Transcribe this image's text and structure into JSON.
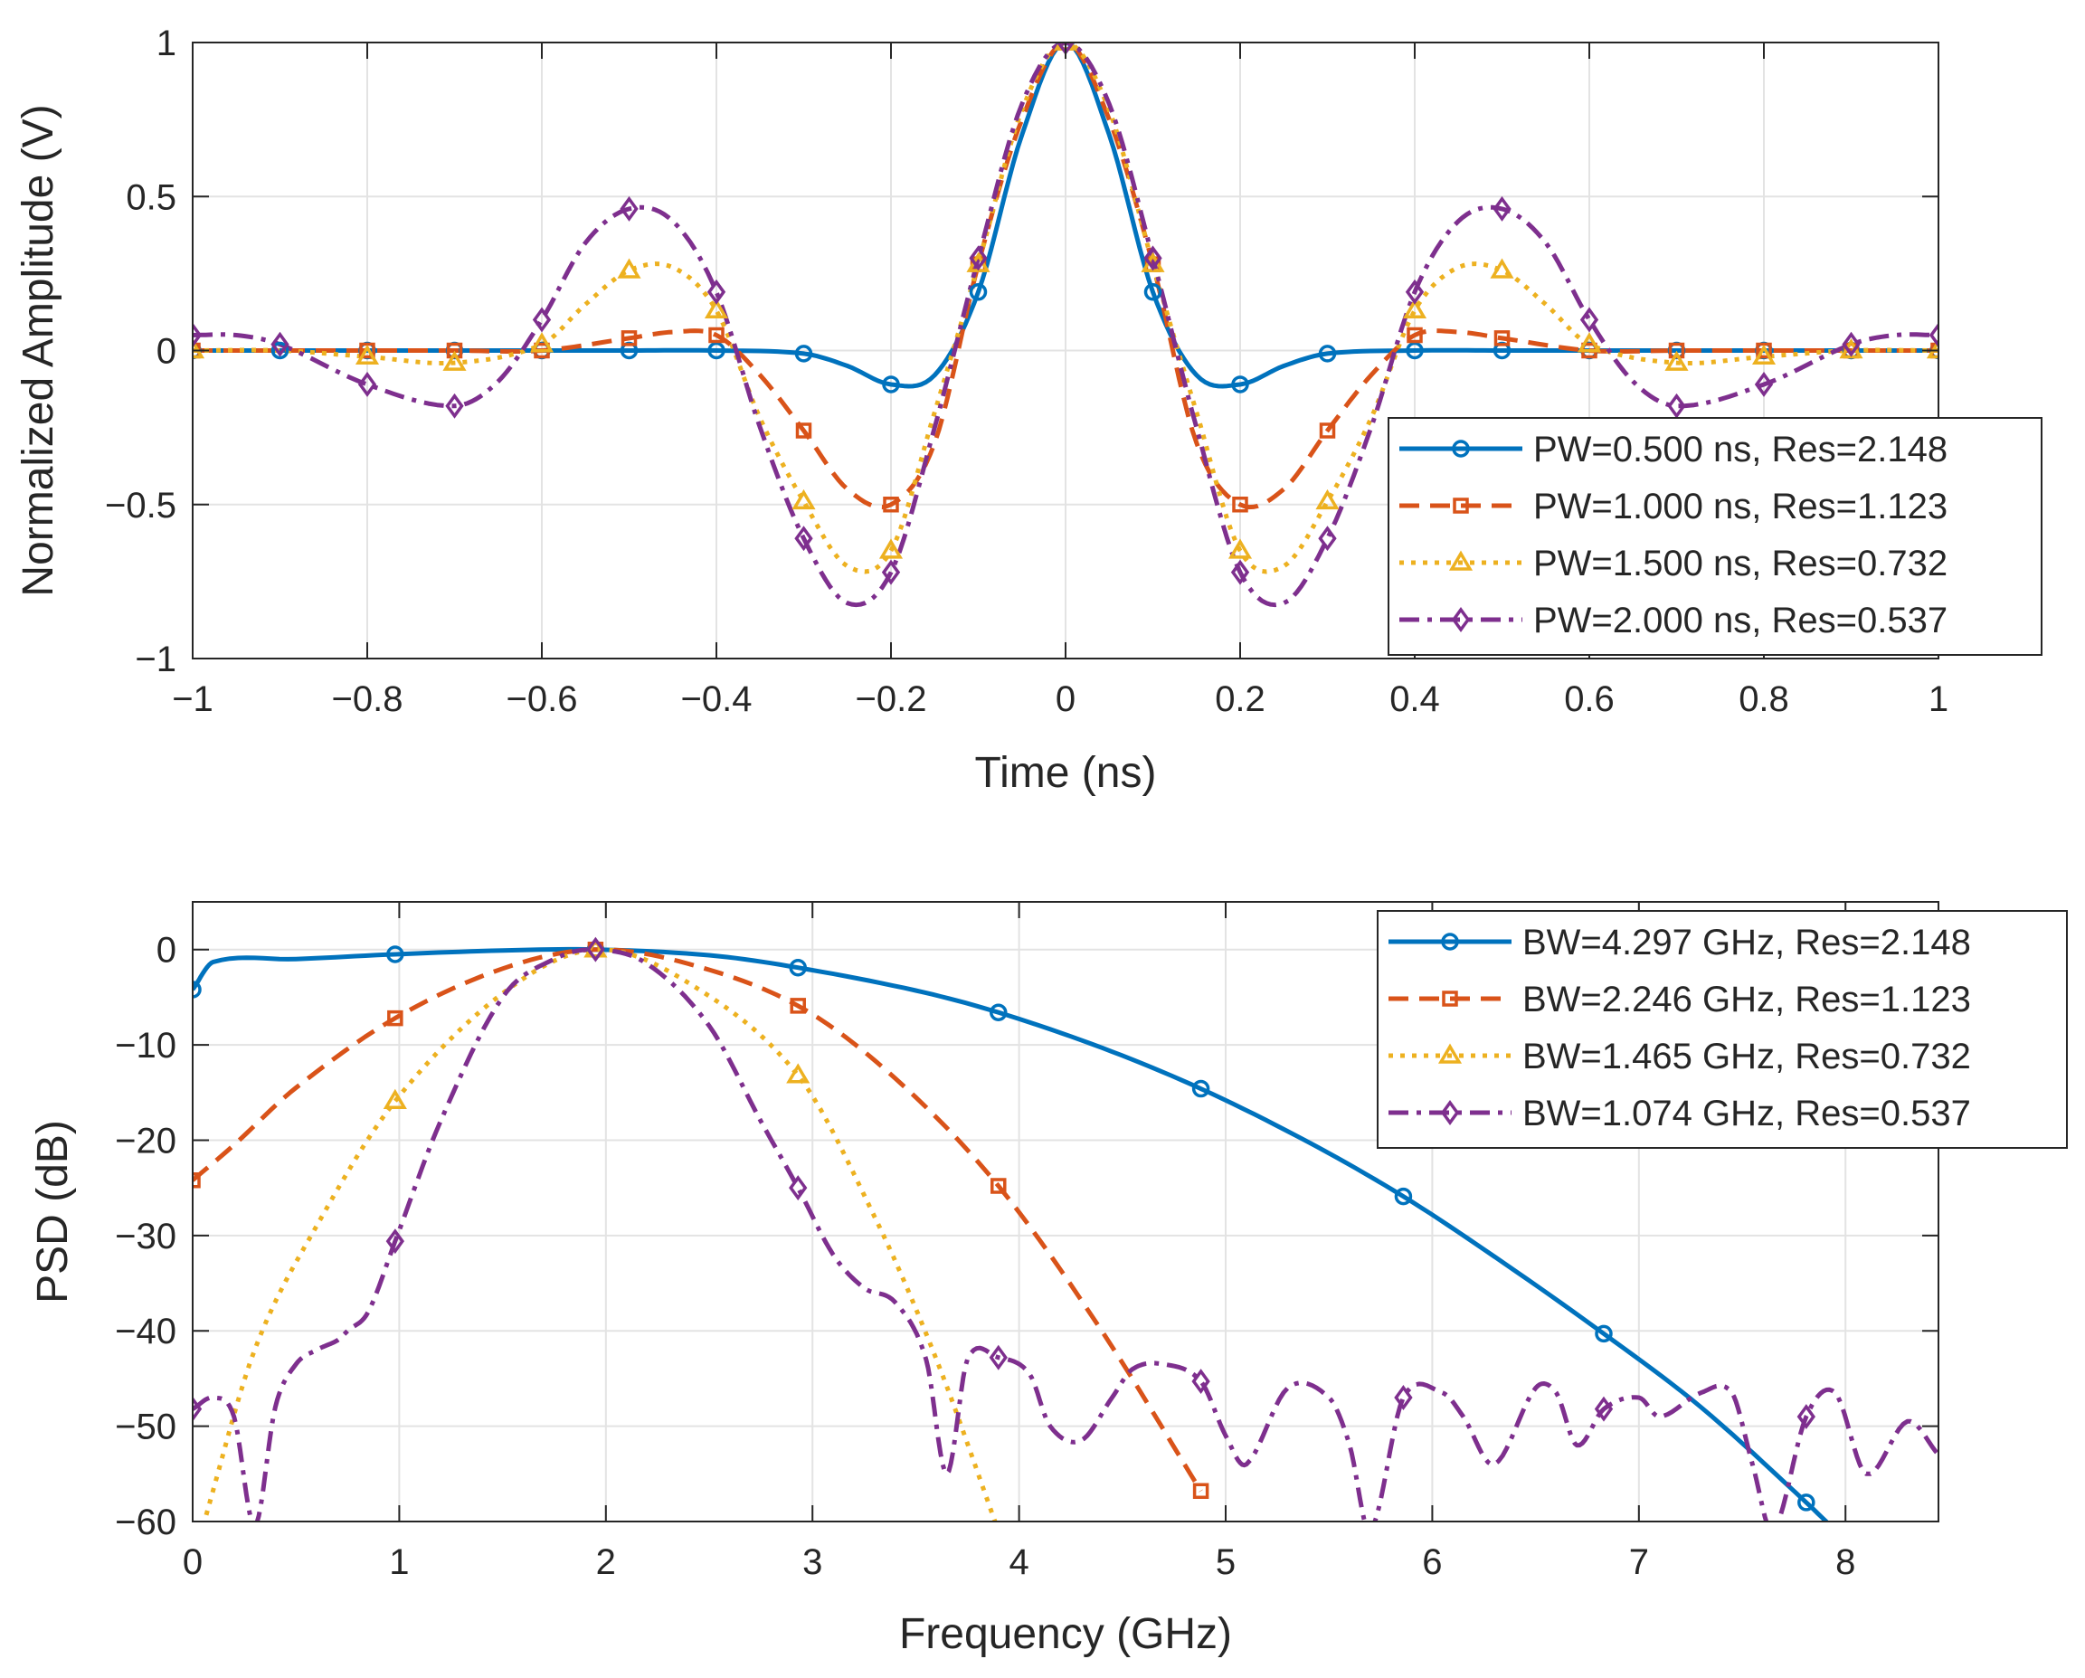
{
  "chart_data": [
    {
      "type": "line",
      "title": "",
      "xlabel": "Time (ns)",
      "ylabel": "Normalized Amplitude (V)",
      "xlim": [
        -1,
        1
      ],
      "ylim": [
        -1,
        1
      ],
      "xticks": [
        -1,
        -0.8,
        -0.6,
        -0.4,
        -0.2,
        0,
        0.2,
        0.4,
        0.6,
        0.8,
        1
      ],
      "xtick_labels": [
        "−1",
        "−0.8",
        "−0.6",
        "−0.4",
        "−0.2",
        "0",
        "0.2",
        "0.4",
        "0.6",
        "0.8",
        "1"
      ],
      "yticks": [
        -1,
        -0.5,
        0,
        0.5,
        1
      ],
      "ytick_labels": [
        "−1",
        "−0.5",
        "0",
        "0.5",
        "1"
      ],
      "grid": true,
      "legend_position": "bottom-right",
      "series": [
        {
          "name": "PW=0.500 ns, Res=2.148",
          "color": "#0072BD",
          "dash": "solid",
          "marker": "circle",
          "x": [
            -1,
            -0.9,
            -0.8,
            -0.7,
            -0.6,
            -0.5,
            -0.4,
            -0.3,
            -0.25,
            -0.2,
            -0.15,
            -0.1,
            -0.05,
            0,
            0.05,
            0.1,
            0.15,
            0.2,
            0.25,
            0.3,
            0.4,
            0.5,
            0.6,
            0.7,
            0.8,
            0.9,
            1
          ],
          "y": [
            0,
            0,
            0,
            0,
            0,
            0,
            0,
            -0.01,
            -0.05,
            -0.11,
            -0.08,
            0.19,
            0.7,
            1,
            0.7,
            0.19,
            -0.08,
            -0.11,
            -0.05,
            -0.01,
            0,
            0,
            0,
            0,
            0,
            0,
            0
          ],
          "marker_x": [
            -1,
            -0.9,
            -0.8,
            -0.7,
            -0.6,
            -0.5,
            -0.4,
            -0.3,
            -0.2,
            -0.1,
            0,
            0.1,
            0.2,
            0.3,
            0.4,
            0.5,
            0.6,
            0.7,
            0.8,
            0.9,
            1
          ]
        },
        {
          "name": "PW=1.000 ns, Res=1.123",
          "color": "#D95319",
          "dash": "dashed",
          "marker": "square",
          "x": [
            -1,
            -0.9,
            -0.8,
            -0.7,
            -0.6,
            -0.5,
            -0.45,
            -0.4,
            -0.35,
            -0.3,
            -0.25,
            -0.2,
            -0.15,
            -0.1,
            -0.05,
            0,
            0.05,
            0.1,
            0.15,
            0.2,
            0.25,
            0.3,
            0.35,
            0.4,
            0.45,
            0.5,
            0.6,
            0.7,
            0.8,
            0.9,
            1
          ],
          "y": [
            0,
            0,
            0,
            0,
            0,
            0.04,
            0.06,
            0.05,
            -0.08,
            -0.26,
            -0.45,
            -0.5,
            -0.3,
            0.28,
            0.75,
            1,
            0.75,
            0.28,
            -0.3,
            -0.5,
            -0.45,
            -0.26,
            -0.08,
            0.05,
            0.06,
            0.04,
            0,
            0,
            0,
            0,
            0
          ],
          "marker_x": [
            -1,
            -0.8,
            -0.7,
            -0.6,
            -0.5,
            -0.4,
            -0.3,
            -0.2,
            -0.1,
            0,
            0.1,
            0.2,
            0.3,
            0.4,
            0.5,
            0.6,
            0.7,
            0.8,
            0.9,
            1
          ]
        },
        {
          "name": "PW=1.500 ns, Res=0.732",
          "color": "#EDB120",
          "dash": "dotted",
          "marker": "triangle",
          "x": [
            -1,
            -0.9,
            -0.8,
            -0.7,
            -0.6,
            -0.55,
            -0.5,
            -0.45,
            -0.4,
            -0.35,
            -0.3,
            -0.25,
            -0.2,
            -0.15,
            -0.1,
            -0.05,
            0,
            0.05,
            0.1,
            0.15,
            0.2,
            0.25,
            0.3,
            0.35,
            0.4,
            0.45,
            0.5,
            0.55,
            0.6,
            0.7,
            0.8,
            0.9,
            1
          ],
          "y": [
            0,
            0,
            -0.02,
            -0.04,
            0.02,
            0.15,
            0.26,
            0.27,
            0.13,
            -0.22,
            -0.49,
            -0.7,
            -0.65,
            -0.2,
            0.28,
            0.78,
            1,
            0.78,
            0.28,
            -0.2,
            -0.65,
            -0.7,
            -0.49,
            -0.22,
            0.13,
            0.27,
            0.26,
            0.15,
            0.02,
            -0.04,
            -0.02,
            0,
            0
          ],
          "marker_x": [
            -1,
            -0.8,
            -0.7,
            -0.6,
            -0.5,
            -0.4,
            -0.3,
            -0.2,
            -0.1,
            0,
            0.1,
            0.2,
            0.3,
            0.4,
            0.5,
            0.6,
            0.7,
            0.8,
            0.9,
            1
          ]
        },
        {
          "name": "PW=2.000 ns, Res=0.537",
          "color": "#7E2F8E",
          "dash": "dashdot",
          "marker": "diamond",
          "x": [
            -1,
            -0.95,
            -0.9,
            -0.8,
            -0.7,
            -0.65,
            -0.6,
            -0.55,
            -0.5,
            -0.45,
            -0.4,
            -0.35,
            -0.3,
            -0.25,
            -0.2,
            -0.15,
            -0.1,
            -0.05,
            0,
            0.05,
            0.1,
            0.15,
            0.2,
            0.25,
            0.3,
            0.35,
            0.4,
            0.45,
            0.5,
            0.55,
            0.6,
            0.65,
            0.7,
            0.8,
            0.9,
            0.95,
            1
          ],
          "y": [
            0.05,
            0.05,
            0.02,
            -0.11,
            -0.18,
            -0.1,
            0.1,
            0.35,
            0.46,
            0.42,
            0.19,
            -0.25,
            -0.61,
            -0.82,
            -0.72,
            -0.25,
            0.3,
            0.8,
            1,
            0.8,
            0.3,
            -0.25,
            -0.72,
            -0.82,
            -0.61,
            -0.25,
            0.19,
            0.42,
            0.46,
            0.35,
            0.1,
            -0.1,
            -0.18,
            -0.11,
            0.02,
            0.05,
            0.05
          ],
          "marker_x": [
            -1,
            -0.9,
            -0.8,
            -0.7,
            -0.6,
            -0.5,
            -0.4,
            -0.3,
            -0.2,
            -0.1,
            0,
            0.1,
            0.2,
            0.3,
            0.4,
            0.5,
            0.6,
            0.7,
            0.8,
            0.9,
            1
          ]
        }
      ]
    },
    {
      "type": "line",
      "title": "",
      "xlabel": "Frequency (GHz)",
      "ylabel": "PSD (dB)",
      "xlim": [
        0,
        8.45
      ],
      "ylim": [
        -60,
        5
      ],
      "xticks": [
        0,
        1,
        2,
        3,
        4,
        5,
        6,
        7,
        8
      ],
      "xtick_labels": [
        "0",
        "1",
        "2",
        "3",
        "4",
        "5",
        "6",
        "7",
        "8"
      ],
      "yticks": [
        -60,
        -50,
        -40,
        -30,
        -20,
        -10,
        0
      ],
      "ytick_labels": [
        "−60",
        "−50",
        "−40",
        "−30",
        "−20",
        "−10",
        "0"
      ],
      "grid": true,
      "legend_position": "top-right",
      "series": [
        {
          "name": "BW=4.297 GHz, Res=2.148",
          "color": "#0072BD",
          "dash": "solid",
          "marker": "circle",
          "x": [
            0,
            0.1,
            0.5,
            0.98,
            1.5,
            1.95,
            2.5,
            2.93,
            3.5,
            3.9,
            4.4,
            4.88,
            5.4,
            5.86,
            6.3,
            6.83,
            7.3,
            7.81,
            8.0
          ],
          "y": [
            -4.2,
            -1.3,
            -1.0,
            -0.5,
            -0.1,
            0,
            -0.6,
            -1.9,
            -4.3,
            -6.6,
            -10.3,
            -14.6,
            -20.2,
            -25.9,
            -32.2,
            -40.3,
            -48.0,
            -58.0,
            -62.0
          ],
          "marker_x": [
            0,
            0.98,
            1.95,
            2.93,
            3.9,
            4.88,
            5.86,
            6.83,
            7.81
          ]
        },
        {
          "name": "BW=2.246 GHz, Res=1.123",
          "color": "#D95319",
          "dash": "dashed",
          "marker": "square",
          "x": [
            0,
            0.2,
            0.5,
            0.98,
            1.5,
            1.95,
            2.4,
            2.93,
            3.4,
            3.9,
            4.4,
            4.88
          ],
          "y": [
            -24.2,
            -20.5,
            -14.5,
            -7.2,
            -2.0,
            0,
            -1.5,
            -5.9,
            -13.5,
            -24.8,
            -40.0,
            -56.8
          ],
          "marker_x": [
            0,
            0.98,
            1.95,
            2.93,
            3.9,
            4.88
          ]
        },
        {
          "name": "BW=1.465 GHz, Res=0.732",
          "color": "#EDB120",
          "dash": "dotted",
          "marker": "triangle",
          "x": [
            0.05,
            0.3,
            0.6,
            0.98,
            1.5,
            1.95,
            2.4,
            2.93,
            3.3,
            3.6,
            3.9
          ],
          "y": [
            -60.5,
            -42.0,
            -29.0,
            -15.9,
            -4.6,
            0,
            -3.5,
            -13.2,
            -28.0,
            -43.0,
            -61.0
          ],
          "marker_x": [
            0.98,
            1.95,
            2.93
          ]
        },
        {
          "name": "BW=1.074 GHz, Res=0.537",
          "color": "#7E2F8E",
          "dash": "dashdot",
          "marker": "diamond",
          "x": [
            0,
            0.1,
            0.2,
            0.3,
            0.4,
            0.5,
            0.6,
            0.7,
            0.75,
            0.85,
            0.98,
            1.2,
            1.5,
            1.75,
            1.95,
            2.2,
            2.5,
            2.75,
            2.93,
            3.1,
            3.25,
            3.4,
            3.55,
            3.65,
            3.75,
            3.9,
            4.05,
            4.15,
            4.3,
            4.45,
            4.55,
            4.7,
            4.88,
            5.0,
            5.1,
            5.3,
            5.5,
            5.6,
            5.7,
            5.86,
            6.05,
            6.15,
            6.3,
            6.5,
            6.6,
            6.7,
            6.83,
            7.0,
            7.1,
            7.3,
            7.45,
            7.55,
            7.65,
            7.81,
            7.95,
            8.1,
            8.3,
            8.45
          ],
          "y": [
            -48.2,
            -47.0,
            -49.0,
            -60.5,
            -48.0,
            -43.5,
            -42.0,
            -41.0,
            -40.0,
            -38.0,
            -30.6,
            -18.0,
            -5.0,
            -1.0,
            0,
            -1.5,
            -8.0,
            -18.0,
            -25.0,
            -32.0,
            -35.5,
            -37.0,
            -43.0,
            -55.0,
            -43.0,
            -42.8,
            -44.5,
            -50.0,
            -51.5,
            -47.0,
            -44.0,
            -43.5,
            -45.3,
            -51.0,
            -54.0,
            -46.0,
            -47.0,
            -52.0,
            -61.0,
            -47.0,
            -46.5,
            -49.0,
            -54.0,
            -46.0,
            -46.5,
            -52.0,
            -48.2,
            -47.0,
            -49.0,
            -46.5,
            -46.5,
            -54.0,
            -61.0,
            -49.0,
            -46.5,
            -55.0,
            -49.5,
            -53.0
          ],
          "marker_x": [
            0,
            0.98,
            1.95,
            2.93,
            3.9,
            4.88,
            5.86,
            6.83,
            7.81
          ]
        }
      ]
    }
  ]
}
